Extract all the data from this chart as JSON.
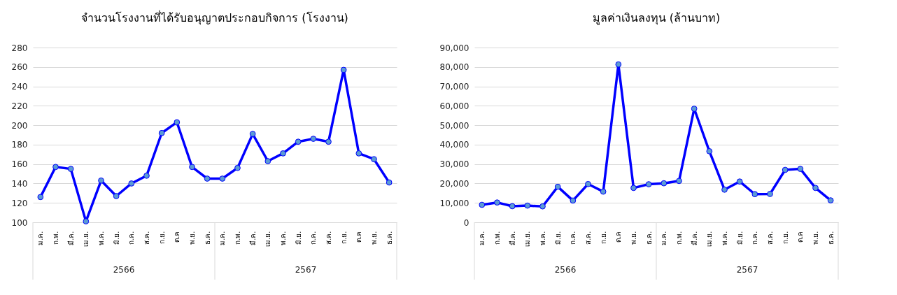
{
  "chart_data": [
    {
      "type": "line",
      "title": "จำนวนโรงงานที่ได้รับอนุญาตประกอบกิจการ (โรงงาน)",
      "categories": [
        "ม.ค.",
        "ก.พ.",
        "มี.ค.",
        "เม.ย.",
        "พ.ค.",
        "มิ.ย.",
        "ก.ค.",
        "ส.ค.",
        "ก.ย.",
        "ต.ค",
        "พ.ย.",
        "ธ.ค.",
        "ม.ค.",
        "ก.พ.",
        "มี.ค.",
        "เม.ย.",
        "พ.ค.",
        "มิ.ย.",
        "ก.ค.",
        "ส.ค.",
        "ก.ย.",
        "ต.ค",
        "พ.ย.",
        "ธ.ค."
      ],
      "series": [
        {
          "color": "#0000ff",
          "values": [
            126,
            157,
            155,
            101,
            143,
            127,
            140,
            148,
            192,
            203,
            157,
            145,
            145,
            156,
            191,
            163,
            171,
            183,
            186,
            183,
            257,
            171,
            165,
            141
          ]
        }
      ],
      "annotations": [
        "2566",
        "2567"
      ],
      "ylim": [
        100,
        280
      ],
      "yticks": [
        100,
        120,
        140,
        160,
        180,
        200,
        220,
        240,
        260,
        280
      ],
      "grid": "y",
      "marker": "circle",
      "line_style": "solid"
    },
    {
      "type": "line",
      "title": "มูลค่าเงินลงทุน (ล้านบาท)",
      "categories": [
        "ม.ค.",
        "ก.พ.",
        "มี.ค.",
        "เม.ย.",
        "พ.ค.",
        "มิ.ย.",
        "ก.ค.",
        "ส.ค.",
        "ก.ย.",
        "ต.ค",
        "พ.ย.",
        "ธ.ค.",
        "ม.ค.",
        "ก.พ.",
        "มี.ค.",
        "เม.ย.",
        "พ.ค.",
        "มิ.ย.",
        "ก.ค.",
        "ส.ค.",
        "ก.ย.",
        "ต.ค",
        "พ.ย.",
        "ธ.ค."
      ],
      "series": [
        {
          "color": "#0000ff",
          "values": [
            9000,
            10200,
            8300,
            8600,
            8200,
            18300,
            11200,
            19700,
            15800,
            81300,
            17700,
            19600,
            20100,
            21300,
            58500,
            36600,
            16800,
            21000,
            14500,
            14600,
            27000,
            27500,
            17700,
            11300
          ]
        }
      ],
      "annotations": [
        "2566",
        "2567"
      ],
      "ylim": [
        0,
        90000
      ],
      "yticks": [
        {
          "value": 0,
          "label": "0"
        },
        {
          "value": 10000,
          "label": "10,000"
        },
        {
          "value": 20000,
          "label": "20,000"
        },
        {
          "value": 30000,
          "label": "30,000"
        },
        {
          "value": 40000,
          "label": "40,000"
        },
        {
          "value": 50000,
          "label": "50,000"
        },
        {
          "value": 60000,
          "label": "60,000"
        },
        {
          "value": 70000,
          "label": "70,000"
        },
        {
          "value": 80000,
          "label": "80,000"
        },
        {
          "value": 90000,
          "label": "90,000"
        }
      ],
      "grid": "y",
      "marker": "circle",
      "line_style": "solid"
    }
  ]
}
